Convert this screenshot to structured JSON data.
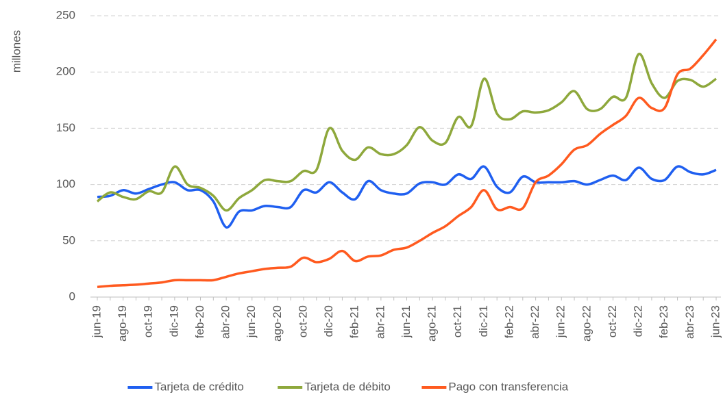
{
  "chart_data": {
    "type": "line",
    "y_label": "millones",
    "categories": [
      "jun-19",
      null,
      "ago-19",
      null,
      "oct-19",
      null,
      "dic-19",
      null,
      "feb-20",
      null,
      "abr-20",
      null,
      "jun-20",
      null,
      "ago-20",
      null,
      "oct-20",
      null,
      "dic-20",
      null,
      "feb-21",
      null,
      "abr-21",
      null,
      "jun-21",
      null,
      "ago-21",
      null,
      "oct-21",
      null,
      "dic-21",
      null,
      "feb-22",
      null,
      "abr-22",
      null,
      "jun-22",
      null,
      "ago-22",
      null,
      "oct-22",
      null,
      "dic-22",
      null,
      "feb-23",
      null,
      "abr-23",
      null,
      "jun-23"
    ],
    "series": [
      {
        "name": "Tarjeta de crédito",
        "color": "#1f5ff0",
        "values": [
          89,
          90,
          95,
          92,
          96,
          100,
          102,
          95,
          95,
          85,
          62,
          76,
          77,
          81,
          80,
          80,
          95,
          93,
          102,
          93,
          87,
          103,
          95,
          92,
          92,
          101,
          102,
          100,
          109,
          105,
          116,
          98,
          93,
          107,
          102,
          102,
          102,
          103,
          100,
          104,
          108,
          104,
          115,
          105,
          104,
          116,
          111,
          109,
          113
        ]
      },
      {
        "name": "Tarjeta de débito",
        "color": "#8ea83c",
        "values": [
          85,
          93,
          89,
          87,
          94,
          93,
          116,
          100,
          97,
          90,
          77,
          88,
          95,
          104,
          103,
          103,
          112,
          113,
          150,
          130,
          122,
          133,
          127,
          127,
          135,
          151,
          139,
          137,
          160,
          152,
          194,
          163,
          158,
          165,
          164,
          166,
          173,
          183,
          167,
          167,
          178,
          177,
          216,
          190,
          177,
          192,
          193,
          187,
          194
        ]
      },
      {
        "name": "Pago con transferencia",
        "color": "#ff5a1f",
        "values": [
          9,
          10,
          10.5,
          11,
          12,
          13,
          15,
          15,
          15,
          15,
          18,
          21,
          23,
          25,
          26,
          27,
          35,
          31,
          34,
          41,
          32,
          36,
          37,
          42,
          44,
          50,
          57,
          63,
          72,
          80,
          95,
          78,
          80,
          79,
          102,
          108,
          118,
          131,
          135,
          145,
          153,
          161,
          177,
          168,
          168,
          198,
          203,
          215,
          229
        ]
      }
    ],
    "ylim": [
      0,
      250
    ],
    "yticks": [
      0,
      50,
      100,
      150,
      200,
      250
    ],
    "grid": true,
    "legend": "bottom"
  }
}
